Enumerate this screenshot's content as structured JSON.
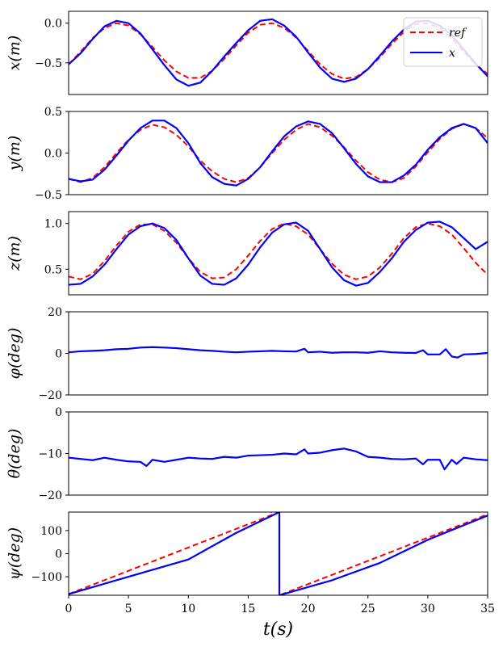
{
  "chart_data": [
    {
      "type": "line",
      "ylabel": "x(m)",
      "ylim": [
        -0.9,
        0.15
      ],
      "yticks": [
        -0.5,
        0.0
      ],
      "ytick_labels": [
        "−0.5",
        "0.0"
      ],
      "legend": {
        "position": "top-right",
        "entries": [
          "ref",
          "x"
        ]
      },
      "series": [
        {
          "name": "ref",
          "color": "#ff0000",
          "style": "dashed",
          "x": [
            0,
            1,
            2,
            3,
            4,
            5,
            6,
            7,
            8,
            9,
            10,
            11,
            12,
            13,
            14,
            15,
            16,
            17,
            18,
            19,
            20,
            21,
            22,
            23,
            24,
            25,
            26,
            27,
            28,
            29,
            30,
            31,
            32,
            33,
            34,
            35
          ],
          "y": [
            -0.52,
            -0.36,
            -0.19,
            -0.06,
            0.0,
            -0.03,
            -0.14,
            -0.3,
            -0.47,
            -0.61,
            -0.69,
            -0.69,
            -0.6,
            -0.45,
            -0.28,
            -0.12,
            -0.02,
            0.0,
            -0.06,
            -0.18,
            -0.35,
            -0.52,
            -0.64,
            -0.7,
            -0.68,
            -0.58,
            -0.43,
            -0.26,
            -0.11,
            -0.01,
            0.0,
            -0.06,
            -0.19,
            -0.36,
            -0.52,
            -0.64
          ]
        },
        {
          "name": "x",
          "color": "#0000ff",
          "style": "solid",
          "x": [
            0,
            1,
            2,
            3,
            4,
            5,
            6,
            7,
            8,
            9,
            10,
            11,
            12,
            13,
            14,
            15,
            16,
            17,
            18,
            19,
            20,
            21,
            22,
            23,
            24,
            25,
            26,
            27,
            28,
            29,
            30,
            31,
            32,
            33,
            34,
            35
          ],
          "y": [
            -0.52,
            -0.38,
            -0.2,
            -0.04,
            0.03,
            0.0,
            -0.13,
            -0.33,
            -0.53,
            -0.71,
            -0.79,
            -0.75,
            -0.6,
            -0.42,
            -0.25,
            -0.09,
            0.03,
            0.05,
            -0.03,
            -0.17,
            -0.37,
            -0.56,
            -0.7,
            -0.74,
            -0.7,
            -0.58,
            -0.41,
            -0.23,
            -0.08,
            0.02,
            0.03,
            -0.03,
            -0.15,
            -0.33,
            -0.51,
            -0.67
          ]
        }
      ]
    },
    {
      "type": "line",
      "ylabel": "y(m)",
      "ylim": [
        -0.5,
        0.5
      ],
      "yticks": [
        -0.5,
        0.0,
        0.5
      ],
      "ytick_labels": [
        "−0.5",
        "0.0",
        "0.5"
      ],
      "series": [
        {
          "name": "ref",
          "color": "#ff0000",
          "style": "dashed",
          "x": [
            0,
            1,
            2,
            3,
            4,
            5,
            6,
            7,
            8,
            9,
            10,
            11,
            12,
            13,
            14,
            15,
            16,
            17,
            18,
            19,
            20,
            21,
            22,
            23,
            24,
            25,
            26,
            27,
            28,
            29,
            30,
            31,
            32,
            33,
            34,
            35
          ],
          "y": [
            -0.31,
            -0.35,
            -0.3,
            -0.17,
            0.0,
            0.16,
            0.28,
            0.34,
            0.31,
            0.22,
            0.08,
            -0.09,
            -0.22,
            -0.31,
            -0.35,
            -0.3,
            -0.17,
            0.0,
            0.16,
            0.28,
            0.35,
            0.31,
            0.21,
            0.07,
            -0.09,
            -0.23,
            -0.32,
            -0.35,
            -0.3,
            -0.16,
            0.01,
            0.17,
            0.29,
            0.35,
            0.3,
            0.18
          ]
        },
        {
          "name": "y",
          "color": "#0000ff",
          "style": "solid",
          "x": [
            0,
            1,
            2,
            3,
            4,
            5,
            6,
            7,
            8,
            9,
            10,
            11,
            12,
            13,
            14,
            15,
            16,
            17,
            18,
            19,
            20,
            21,
            22,
            23,
            24,
            25,
            26,
            27,
            28,
            29,
            30,
            31,
            32,
            33,
            34,
            35
          ],
          "y": [
            -0.31,
            -0.34,
            -0.32,
            -0.2,
            -0.03,
            0.15,
            0.3,
            0.39,
            0.39,
            0.3,
            0.12,
            -0.12,
            -0.29,
            -0.37,
            -0.39,
            -0.31,
            -0.17,
            0.02,
            0.2,
            0.32,
            0.38,
            0.35,
            0.24,
            0.06,
            -0.13,
            -0.28,
            -0.35,
            -0.35,
            -0.27,
            -0.14,
            0.04,
            0.19,
            0.3,
            0.35,
            0.3,
            0.12
          ]
        }
      ]
    },
    {
      "type": "line",
      "ylabel": "z(m)",
      "ylim": [
        0.22,
        1.13
      ],
      "yticks": [
        0.5,
        1.0
      ],
      "ytick_labels": [
        "0.5",
        "1.0"
      ],
      "series": [
        {
          "name": "ref",
          "color": "#ff0000",
          "style": "dashed",
          "x": [
            0,
            1,
            2,
            3,
            4,
            5,
            6,
            7,
            8,
            9,
            10,
            11,
            12,
            13,
            14,
            15,
            16,
            17,
            18,
            19,
            20,
            21,
            22,
            23,
            24,
            25,
            26,
            27,
            28,
            29,
            30,
            31,
            32,
            33,
            34,
            35
          ],
          "y": [
            0.42,
            0.39,
            0.45,
            0.59,
            0.76,
            0.91,
            0.99,
            0.99,
            0.92,
            0.79,
            0.62,
            0.47,
            0.4,
            0.41,
            0.5,
            0.65,
            0.81,
            0.94,
            1.0,
            0.97,
            0.88,
            0.72,
            0.56,
            0.44,
            0.39,
            0.42,
            0.52,
            0.67,
            0.84,
            0.96,
            1.0,
            0.97,
            0.88,
            0.73,
            0.57,
            0.44
          ]
        },
        {
          "name": "z",
          "color": "#0000ff",
          "style": "solid",
          "x": [
            0,
            1,
            2,
            3,
            4,
            5,
            6,
            7,
            8,
            9,
            10,
            11,
            12,
            13,
            14,
            15,
            16,
            17,
            18,
            19,
            20,
            21,
            22,
            23,
            24,
            25,
            26,
            27,
            28,
            29,
            30,
            31,
            32,
            33,
            34,
            35
          ],
          "y": [
            0.33,
            0.34,
            0.42,
            0.55,
            0.72,
            0.88,
            0.97,
            1.0,
            0.95,
            0.82,
            0.62,
            0.43,
            0.34,
            0.33,
            0.4,
            0.55,
            0.74,
            0.9,
            0.99,
            1.01,
            0.92,
            0.72,
            0.52,
            0.38,
            0.32,
            0.35,
            0.47,
            0.62,
            0.8,
            0.93,
            1.01,
            1.02,
            0.96,
            0.84,
            0.72,
            0.8
          ]
        }
      ]
    },
    {
      "type": "line",
      "ylabel": "φ(deg)",
      "ylim": [
        -20,
        20
      ],
      "yticks": [
        -20,
        0,
        20
      ],
      "ytick_labels": [
        "−20",
        "0",
        "20"
      ],
      "series": [
        {
          "name": "phi",
          "color": "#0000ff",
          "style": "solid",
          "x": [
            0,
            1,
            2,
            3,
            4,
            5,
            6,
            7,
            8,
            9,
            10,
            11,
            12,
            13,
            14,
            15,
            16,
            17,
            18,
            19,
            19.7,
            20,
            21,
            22,
            23,
            24,
            25,
            26,
            27,
            28,
            29,
            29.6,
            30,
            31,
            31.5,
            32,
            32.5,
            33,
            34,
            35
          ],
          "y": [
            0.5,
            1.0,
            1.2,
            1.5,
            2.0,
            2.2,
            2.8,
            3.0,
            2.8,
            2.5,
            2.0,
            1.5,
            1.2,
            0.8,
            0.5,
            0.8,
            1.0,
            1.2,
            1.0,
            0.9,
            2.2,
            0.5,
            0.8,
            0.3,
            0.5,
            0.5,
            0.3,
            1.0,
            0.5,
            0.3,
            0.2,
            1.5,
            -0.5,
            -0.5,
            2.0,
            -1.5,
            -2.0,
            -0.5,
            -0.3,
            0.2
          ]
        }
      ]
    },
    {
      "type": "line",
      "ylabel": "θ(deg)",
      "ylim": [
        -20,
        0
      ],
      "yticks": [
        -20,
        -10,
        0
      ],
      "ytick_labels": [
        "−20",
        "−10",
        "0"
      ],
      "series": [
        {
          "name": "theta",
          "color": "#0000ff",
          "style": "solid",
          "x": [
            0,
            1,
            2,
            3,
            4,
            5,
            6,
            6.5,
            7,
            8,
            9,
            10,
            11,
            12,
            13,
            14,
            15,
            16,
            17,
            18,
            19,
            19.7,
            20,
            21,
            22,
            23,
            24,
            25,
            26,
            27,
            28,
            29,
            29.6,
            30,
            31,
            31.4,
            32,
            32.4,
            33,
            34,
            35
          ],
          "y": [
            -11.0,
            -11.3,
            -11.6,
            -11.0,
            -11.5,
            -11.9,
            -12.0,
            -13.0,
            -11.5,
            -12.0,
            -11.5,
            -11.0,
            -11.2,
            -11.3,
            -10.8,
            -11.0,
            -10.5,
            -10.4,
            -10.3,
            -10.0,
            -10.2,
            -9.0,
            -10.0,
            -9.8,
            -9.2,
            -8.8,
            -9.5,
            -10.8,
            -11.0,
            -11.3,
            -11.4,
            -11.2,
            -12.6,
            -11.5,
            -11.5,
            -13.8,
            -11.5,
            -12.5,
            -11.0,
            -11.4,
            -11.6
          ]
        }
      ]
    },
    {
      "type": "line",
      "ylabel": "ψ(deg)",
      "ylim": [
        -180,
        180
      ],
      "yticks": [
        -100,
        0,
        100
      ],
      "ytick_labels": [
        "−100",
        "0",
        "100"
      ],
      "xlabel": "t(s)",
      "xlim": [
        0,
        35
      ],
      "xticks": [
        0,
        5,
        10,
        15,
        20,
        25,
        30,
        35
      ],
      "xtick_labels": [
        "0",
        "5",
        "10",
        "15",
        "20",
        "25",
        "30",
        "35"
      ],
      "series": [
        {
          "name": "ref",
          "color": "#ff0000",
          "style": "dashed",
          "x": [
            0,
            17.6,
            17.6,
            35
          ],
          "y": [
            -175,
            180,
            -180,
            170
          ]
        },
        {
          "name": "psi",
          "color": "#0000ff",
          "style": "solid",
          "x": [
            0,
            5,
            10,
            14,
            17.6,
            17.6,
            22,
            26,
            30,
            35
          ],
          "y": [
            -175,
            -100,
            -25,
            90,
            180,
            -180,
            -115,
            -40,
            60,
            165
          ]
        }
      ]
    }
  ]
}
